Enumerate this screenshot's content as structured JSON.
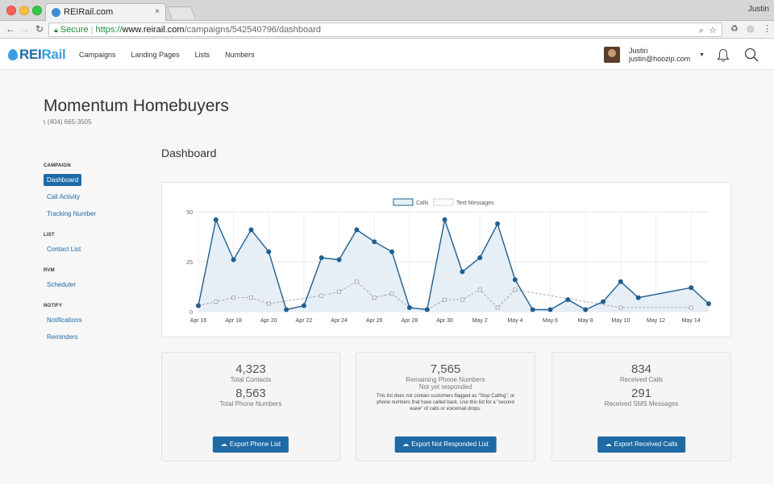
{
  "browser": {
    "tab_title": "REIRail.com",
    "tab_close": "×",
    "profile_name": "Justin",
    "secure_label": "Secure",
    "url_scheme": "https://",
    "url_host": "www.reirail.com",
    "url_path": "/campaigns/542540796/dashboard"
  },
  "app": {
    "logo_rei": "REI",
    "logo_rail": "Rail",
    "nav": [
      "Campaigns",
      "Landing Pages",
      "Lists",
      "Numbers"
    ],
    "user_name": "Justin",
    "user_email": "justin@hoozip.com"
  },
  "page": {
    "title": "Momentum Homebuyers",
    "phone": "(404) 665-3505",
    "dashboard_title": "Dashboard"
  },
  "sidebar": {
    "groups": [
      {
        "heading": "CAMPAIGN",
        "items": [
          "Dashboard",
          "Call Activity",
          "Tracking Number"
        ]
      },
      {
        "heading": "LIST",
        "items": [
          "Contact List"
        ]
      },
      {
        "heading": "RVM",
        "items": [
          "Scheduler"
        ]
      },
      {
        "heading": "NOTIFY",
        "items": [
          "Notifications",
          "Reminders"
        ]
      }
    ],
    "active_item": "Dashboard"
  },
  "colors": {
    "accent": "#1e6aa5",
    "calls_line": "#1f5f8f",
    "calls_fill": "#e6eef6",
    "sms_line": "#999999"
  },
  "chart_data": {
    "type": "line",
    "legend_position": "top-center",
    "series_labels": [
      "Calls",
      "Text Messages"
    ],
    "y_ticks": [
      "0",
      "25",
      "50"
    ],
    "ylim": [
      0,
      50
    ],
    "x_tick_labels": [
      "Apr 16",
      "Apr 18",
      "Apr 20",
      "Apr 22",
      "Apr 24",
      "Apr 26",
      "Apr 28",
      "Apr 30",
      "May 2",
      "May 4",
      "May 6",
      "May 8",
      "May 10",
      "May 12",
      "May 14"
    ],
    "series": [
      {
        "name": "Calls",
        "points": [
          {
            "x": "Apr 16",
            "y": 3
          },
          {
            "x": "Apr 17",
            "y": 46
          },
          {
            "x": "Apr 18",
            "y": 26
          },
          {
            "x": "Apr 19",
            "y": 41
          },
          {
            "x": "Apr 20",
            "y": 30
          },
          {
            "x": "Apr 21",
            "y": 1
          },
          {
            "x": "Apr 22",
            "y": 3
          },
          {
            "x": "Apr 23",
            "y": 27
          },
          {
            "x": "Apr 24",
            "y": 26
          },
          {
            "x": "Apr 25",
            "y": 41
          },
          {
            "x": "Apr 26",
            "y": 35
          },
          {
            "x": "Apr 27",
            "y": 30
          },
          {
            "x": "Apr 28",
            "y": 2
          },
          {
            "x": "Apr 29",
            "y": 1
          },
          {
            "x": "Apr 30",
            "y": 46
          },
          {
            "x": "May 1",
            "y": 20
          },
          {
            "x": "May 2",
            "y": 27
          },
          {
            "x": "May 3",
            "y": 44
          },
          {
            "x": "May 4",
            "y": 16
          },
          {
            "x": "May 5",
            "y": 1
          },
          {
            "x": "May 6",
            "y": 1
          },
          {
            "x": "May 7",
            "y": 6
          },
          {
            "x": "May 8",
            "y": 1
          },
          {
            "x": "May 9",
            "y": 5
          },
          {
            "x": "May 10",
            "y": 15
          },
          {
            "x": "May 11",
            "y": 7
          },
          {
            "x": "May 14",
            "y": 12
          },
          {
            "x": "May 15",
            "y": 4
          }
        ]
      },
      {
        "name": "Text Messages",
        "points": [
          {
            "x": "Apr 16",
            "y": 3
          },
          {
            "x": "Apr 17",
            "y": 5
          },
          {
            "x": "Apr 18",
            "y": 7
          },
          {
            "x": "Apr 19",
            "y": 7
          },
          {
            "x": "Apr 20",
            "y": 4
          },
          {
            "x": "Apr 23",
            "y": 8
          },
          {
            "x": "Apr 24",
            "y": 10
          },
          {
            "x": "Apr 25",
            "y": 15
          },
          {
            "x": "Apr 26",
            "y": 7
          },
          {
            "x": "Apr 27",
            "y": 9
          },
          {
            "x": "Apr 28",
            "y": 2
          },
          {
            "x": "Apr 29",
            "y": 1
          },
          {
            "x": "Apr 30",
            "y": 6
          },
          {
            "x": "May 1",
            "y": 6
          },
          {
            "x": "May 2",
            "y": 11
          },
          {
            "x": "May 3",
            "y": 2
          },
          {
            "x": "May 4",
            "y": 11
          },
          {
            "x": "May 10",
            "y": 2
          },
          {
            "x": "May 14",
            "y": 2
          }
        ]
      }
    ]
  },
  "stats": {
    "contacts": {
      "total_contacts": "4,323",
      "total_contacts_label": "Total Contacts",
      "total_phone": "8,563",
      "total_phone_label": "Total Phone Numbers",
      "button": "Export Phone List"
    },
    "not_responded": {
      "remaining": "7,565",
      "remaining_label": "Remaining Phone Numbers",
      "sublabel": "Not yet responded",
      "note": "This list does not contain customers flagged as \"Stop Calling\", or phone numbers that have called back. Use this list for a \"second wave\" of calls or voicemail drops.",
      "button": "Export Not Responded List"
    },
    "received": {
      "calls": "834",
      "calls_label": "Received Calls",
      "sms": "291",
      "sms_label": "Received SMS Messages",
      "button": "Export Received Calls"
    }
  }
}
